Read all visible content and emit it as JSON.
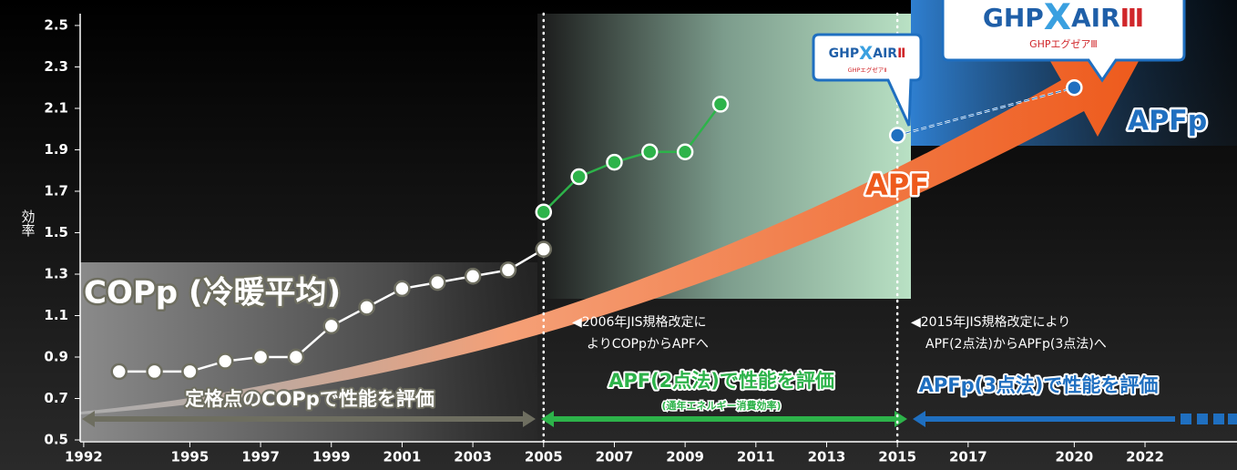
{
  "chart_data": {
    "type": "line",
    "y_label": "効率",
    "xlim": [
      1991.9,
      2024.6
    ],
    "ylim": [
      0.5,
      2.557
    ],
    "xticks": [
      1992,
      1995,
      1997,
      1999,
      2001,
      2003,
      2005,
      2007,
      2009,
      2011,
      2013,
      2015,
      2017,
      2020,
      2022
    ],
    "yticks": [
      0.5,
      0.7,
      0.9,
      1.1,
      1.3,
      1.5,
      1.7,
      1.9,
      2.1,
      2.3,
      2.5
    ],
    "period_dividers": [
      2005,
      2015
    ],
    "series": [
      {
        "name": "COPp (冷暖平均)",
        "color": "#6e6e60",
        "x": [
          1993,
          1994,
          1995,
          1996,
          1997,
          1998,
          1999,
          2000,
          2001,
          2002,
          2003,
          2004,
          2005
        ],
        "values": [
          0.83,
          0.83,
          0.83,
          0.88,
          0.9,
          0.9,
          1.05,
          1.14,
          1.23,
          1.26,
          1.29,
          1.32,
          1.42
        ]
      },
      {
        "name": "APF",
        "color": "#2db34a",
        "x": [
          2005,
          2006,
          2007,
          2008,
          2009,
          2010
        ],
        "values": [
          1.6,
          1.77,
          1.84,
          1.89,
          1.89,
          2.12
        ]
      },
      {
        "name": "APFp",
        "color": "#1f6fc0",
        "x": [
          2015,
          2020
        ],
        "values": [
          1.97,
          2.2
        ]
      }
    ],
    "annotations": [
      {
        "lines": [
          "◀2006年JIS規格改定に",
          "よりCOPpからAPFへ"
        ]
      },
      {
        "lines": [
          "◀2015年JIS規格改定により",
          "APF(2点法)からAPFp(3点法)へ"
        ]
      }
    ],
    "evaluations": [
      {
        "text": "定格点のCOPpで性能を評価"
      },
      {
        "text": "APF(2点法)で性能を評価",
        "note": "(通年エネルギー消費効率)"
      },
      {
        "text": "APFp(3点法)で性能を評価"
      }
    ],
    "logos": [
      {
        "parts": [
          "GHP",
          "X",
          "AIR",
          "Ⅱ"
        ],
        "subtext": "GHPエグゼアⅡ"
      },
      {
        "parts": [
          "GHP",
          "X",
          "AIR",
          "Ⅲ"
        ],
        "subtext": "GHPエグゼアⅢ"
      }
    ]
  }
}
